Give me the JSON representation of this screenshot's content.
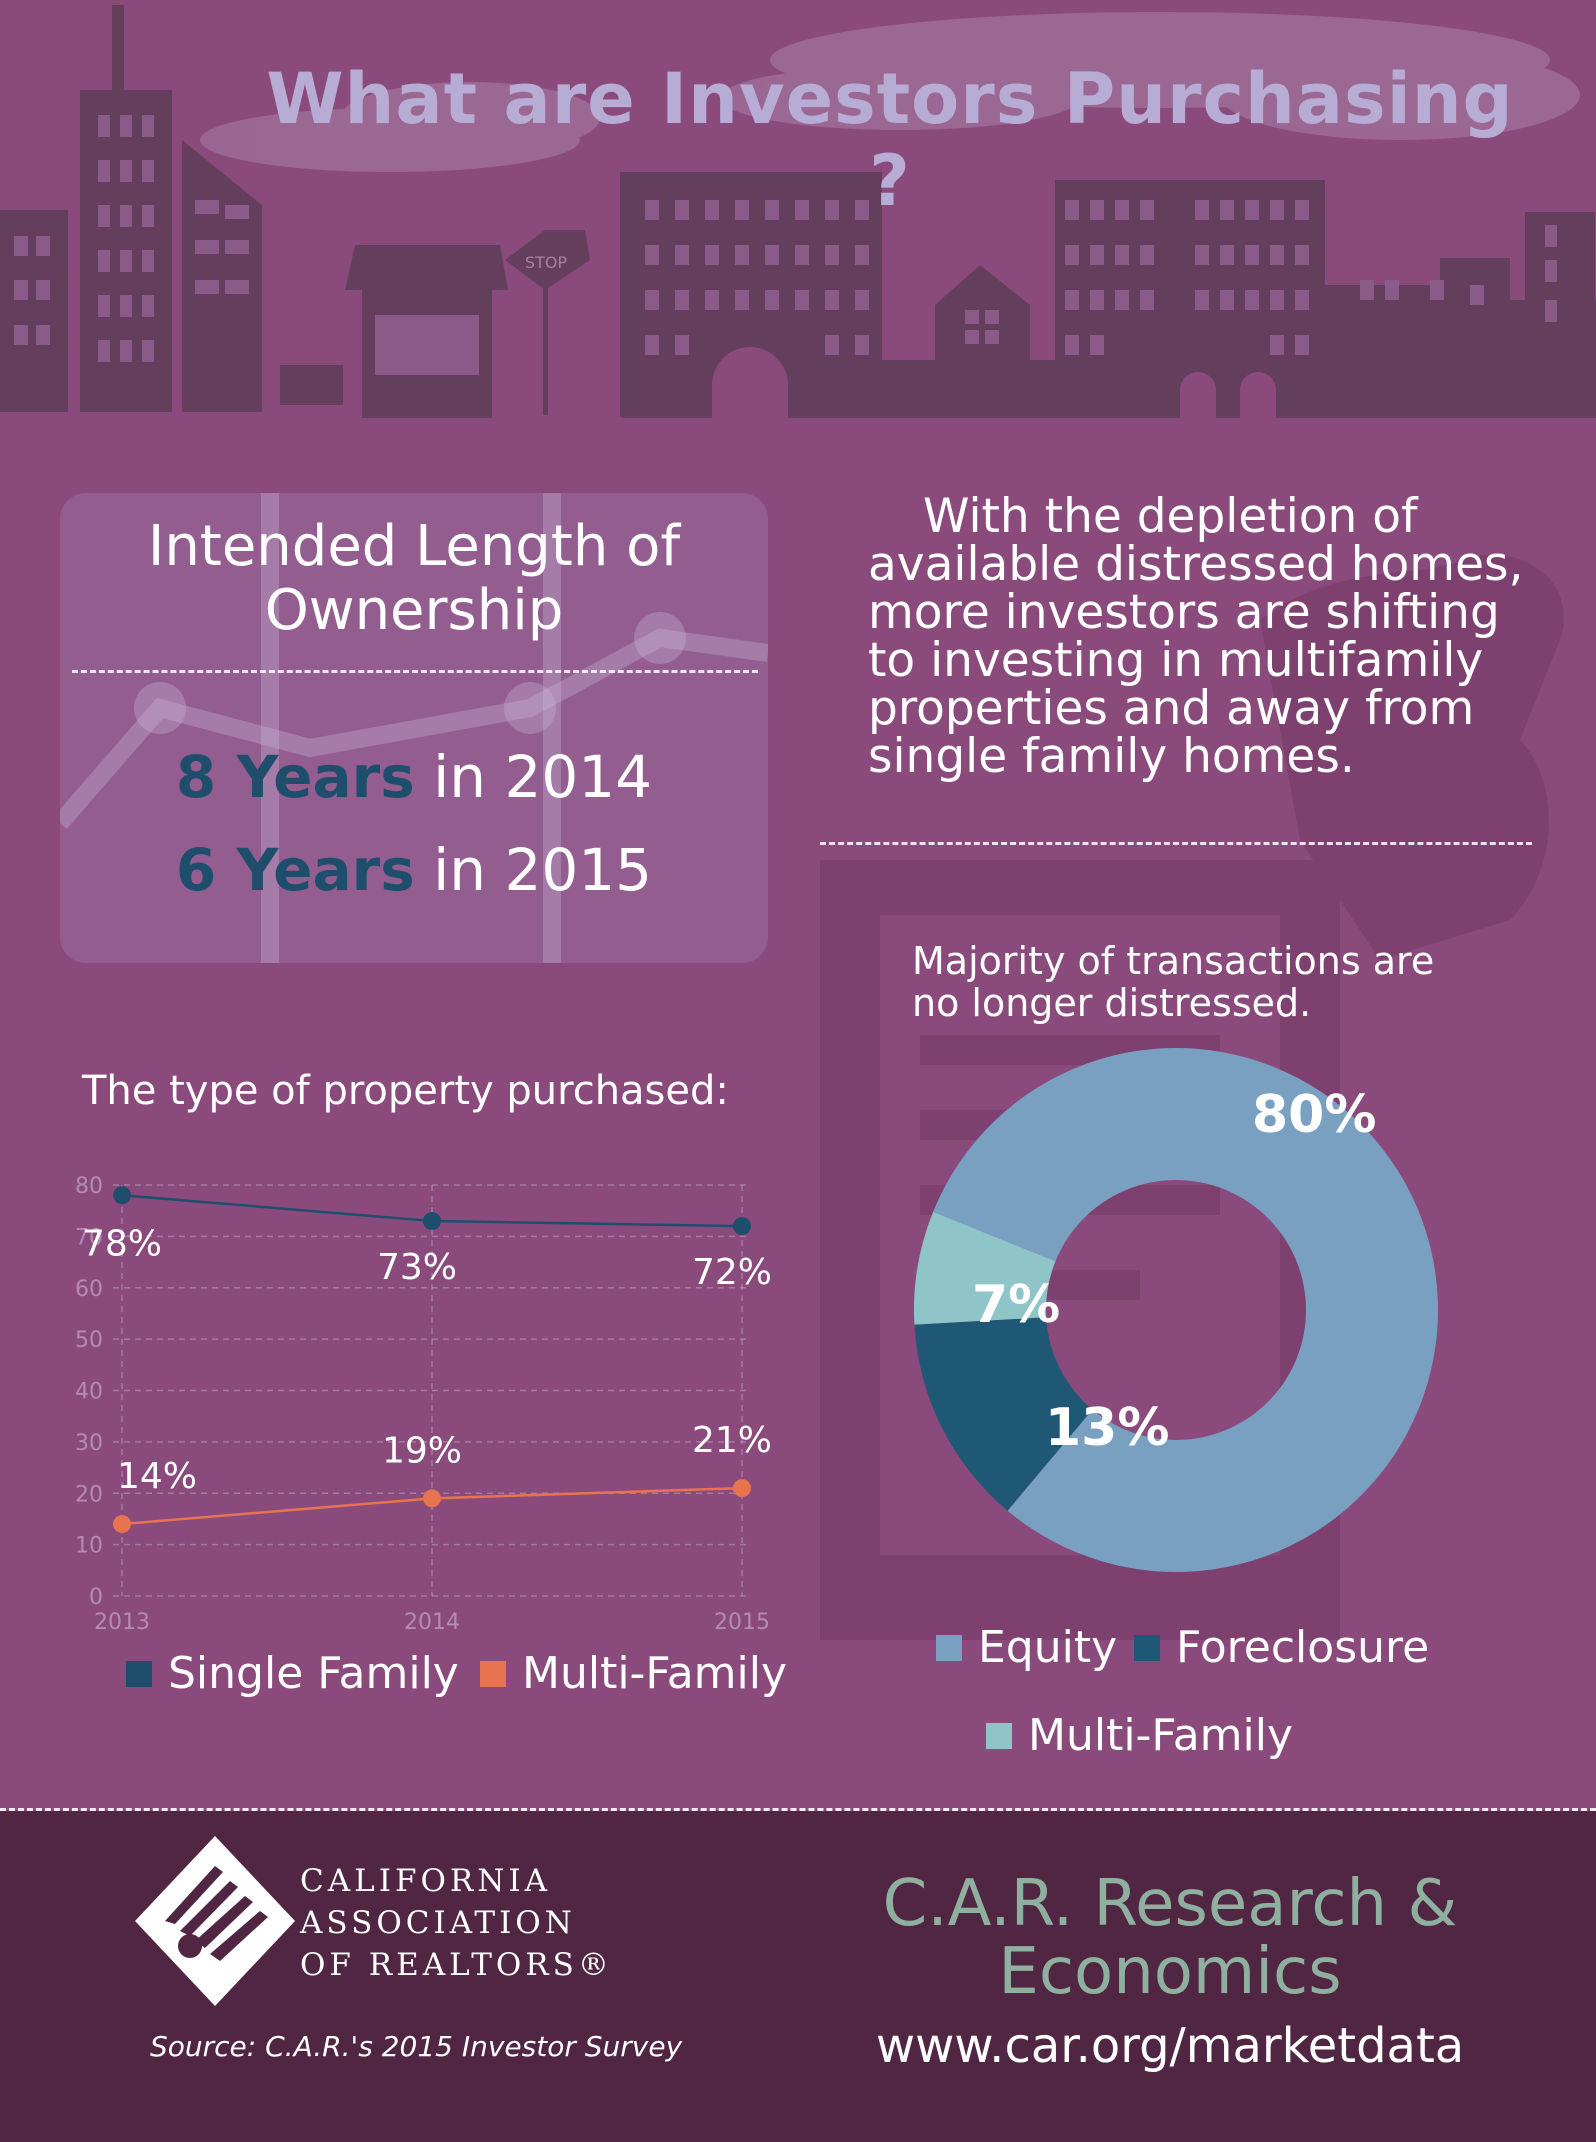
{
  "header": {
    "title": "What are Investors Purchasing ?"
  },
  "skyline": {
    "stop_sign_text": "STOP"
  },
  "ownership": {
    "title": "Intended Length of Ownership",
    "lines": [
      {
        "years": "8 Years",
        "rest": "in 2014"
      },
      {
        "years": "6 Years",
        "rest": "in 2015"
      }
    ]
  },
  "intro": {
    "text": "With the depletion of available distressed homes, more investors are shifting to investing in multifamily properties and away from single family homes."
  },
  "colors": {
    "background": "#8a4b7c",
    "single_family": "#1f4e6c",
    "multi_family_line": "#e8734f",
    "equity": "#7aa0c1",
    "foreclosure": "#1f5874",
    "multi_family_donut": "#8fc5c9",
    "footer": "#502642"
  },
  "chart_data": [
    {
      "type": "line",
      "title": "The type of property purchased:",
      "x": [
        "2013",
        "2014",
        "2015"
      ],
      "ylim": [
        0,
        80
      ],
      "yticks": [
        "0",
        "10",
        "20",
        "30",
        "40",
        "50",
        "60",
        "70",
        "80"
      ],
      "grid": true,
      "legend_position": "bottom",
      "series": [
        {
          "name": "Single Family",
          "values": [
            78,
            73,
            72
          ],
          "labels": [
            "78%",
            "73%",
            "72%"
          ]
        },
        {
          "name": "Multi-Family",
          "values": [
            14,
            19,
            21
          ],
          "labels": [
            "14%",
            "19%",
            "21%"
          ]
        }
      ]
    },
    {
      "type": "pie",
      "title": "Majority of transactions are no longer distressed.",
      "legend_position": "bottom",
      "slices": [
        {
          "name": "Equity",
          "value": 80,
          "label": "80%"
        },
        {
          "name": "Foreclosure",
          "value": 13,
          "label": "13%"
        },
        {
          "name": "Multi-Family",
          "value": 7,
          "label": "7%"
        }
      ]
    }
  ],
  "footer": {
    "logo_lines": [
      "CALIFORNIA",
      "ASSOCIATION",
      "OF REALTORS®"
    ],
    "source": "Source: C.A.R.'s 2015 Investor Survey",
    "research": "C.A.R. Research & Economics",
    "url": "www.car.org/marketdata"
  }
}
